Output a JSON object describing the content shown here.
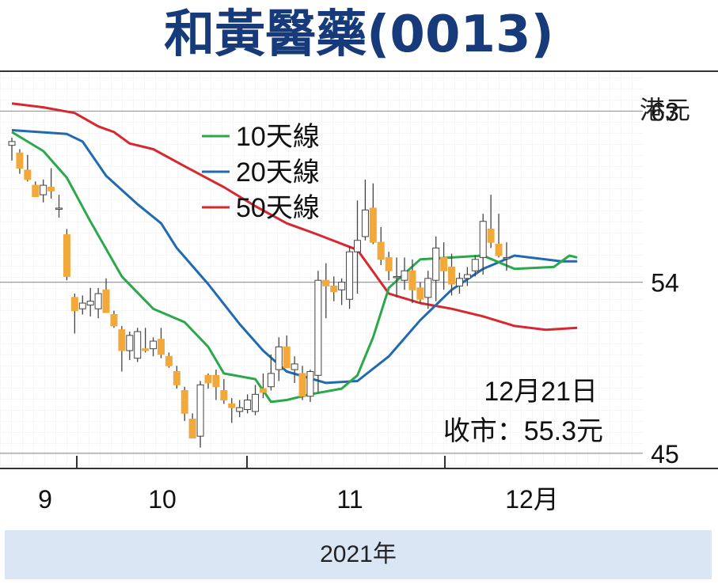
{
  "title": "和黃醫藥(0013)",
  "footer_year": "2021年",
  "chart_data": {
    "type": "candlestick-line",
    "ylabel": "港元",
    "yticks": [
      63,
      54,
      45
    ],
    "ylim": [
      44.2,
      65.1
    ],
    "xticks": [
      "9",
      "10",
      "11",
      "12月"
    ],
    "annotation": {
      "date": "12月21日",
      "close": "收市：55.3元"
    },
    "legend": [
      "10天線",
      "20天線",
      "50天線"
    ],
    "colors": {
      "ma10": "#2aa84a",
      "ma20": "#1f6ab3",
      "ma50": "#d7282f",
      "down": "#f2a93b",
      "up": "#ffffff",
      "wick": "#444444",
      "title": "#163a7a"
    },
    "ohlc": [
      [
        61.2,
        61.6,
        60.4,
        61.4
      ],
      [
        60.8,
        61.0,
        59.7,
        60.0
      ],
      [
        59.9,
        60.7,
        59.3,
        59.4
      ],
      [
        59.1,
        59.3,
        58.6,
        58.5
      ],
      [
        58.6,
        59.4,
        58.2,
        59.1
      ],
      [
        59.0,
        60.0,
        58.4,
        58.8
      ],
      [
        57.9,
        58.6,
        57.4,
        57.9
      ],
      [
        56.5,
        56.8,
        54.1,
        54.3
      ],
      [
        53.2,
        53.4,
        51.3,
        52.5
      ],
      [
        52.6,
        53.3,
        52.3,
        52.9
      ],
      [
        52.8,
        53.7,
        52.2,
        53.0
      ],
      [
        52.6,
        53.7,
        52.1,
        53.4
      ],
      [
        53.6,
        54.2,
        52.6,
        52.4
      ],
      [
        52.3,
        52.5,
        51.6,
        51.7
      ],
      [
        51.5,
        51.7,
        49.3,
        50.4
      ],
      [
        50.4,
        51.4,
        49.9,
        51.2
      ],
      [
        50.0,
        51.6,
        49.8,
        51.4
      ],
      [
        50.5,
        51.6,
        50.3,
        50.4
      ],
      [
        50.5,
        51.1,
        50.1,
        50.9
      ],
      [
        51.0,
        51.6,
        50.0,
        50.2
      ],
      [
        50.1,
        50.3,
        49.5,
        49.6
      ],
      [
        49.3,
        49.6,
        48.4,
        48.6
      ],
      [
        48.3,
        48.5,
        46.7,
        47.1
      ],
      [
        46.8,
        47.1,
        45.8,
        45.8
      ],
      [
        45.9,
        48.8,
        45.3,
        48.6
      ],
      [
        49.1,
        49.2,
        48.4,
        48.7
      ],
      [
        49.1,
        49.4,
        47.8,
        48.5
      ],
      [
        48.3,
        48.9,
        47.6,
        47.8
      ],
      [
        47.6,
        47.9,
        46.6,
        47.4
      ],
      [
        47.2,
        47.8,
        46.9,
        47.4
      ],
      [
        47.3,
        48.1,
        47.1,
        47.8
      ],
      [
        47.2,
        48.6,
        47.0,
        48.1
      ],
      [
        48.4,
        49.2,
        47.9,
        48.2
      ],
      [
        48.5,
        50.2,
        48.3,
        49.2
      ],
      [
        49.4,
        51.1,
        48.8,
        50.6
      ],
      [
        50.6,
        51.2,
        49.6,
        49.5
      ],
      [
        49.4,
        50.1,
        48.7,
        49.7
      ],
      [
        49.2,
        49.6,
        47.8,
        48.0
      ],
      [
        48.0,
        49.4,
        47.7,
        49.3
      ],
      [
        49.1,
        54.6,
        48.2,
        54.1
      ],
      [
        54.1,
        55.0,
        52.1,
        53.8
      ],
      [
        53.8,
        54.3,
        53.0,
        53.5
      ],
      [
        53.6,
        54.2,
        52.8,
        54.0
      ],
      [
        53.1,
        55.9,
        52.6,
        55.6
      ],
      [
        55.6,
        58.3,
        53.4,
        56.2
      ],
      [
        56.4,
        59.4,
        56.2,
        57.8
      ],
      [
        57.9,
        59.2,
        56.0,
        56.1
      ],
      [
        56.1,
        56.9,
        54.9,
        55.2
      ],
      [
        55.3,
        55.6,
        54.1,
        54.6
      ],
      [
        54.3,
        55.3,
        53.2,
        54.3
      ],
      [
        54.1,
        55.3,
        53.6,
        54.6
      ],
      [
        54.6,
        55.2,
        52.9,
        53.6
      ],
      [
        53.7,
        54.0,
        52.9,
        53.1
      ],
      [
        53.2,
        54.6,
        52.6,
        54.2
      ],
      [
        54.1,
        56.4,
        53.0,
        55.8
      ],
      [
        55.3,
        56.1,
        53.6,
        54.6
      ],
      [
        54.8,
        55.5,
        53.3,
        53.9
      ],
      [
        53.8,
        54.5,
        53.4,
        54.2
      ],
      [
        54.2,
        54.8,
        53.8,
        54.4
      ],
      [
        54.6,
        55.4,
        54.3,
        55.2
      ],
      [
        55.3,
        57.6,
        54.4,
        57.2
      ],
      [
        56.8,
        58.6,
        55.8,
        56.1
      ],
      [
        56.0,
        57.6,
        55.3,
        55.4
      ],
      [
        55.3,
        56.1,
        54.6,
        55.3
      ]
    ],
    "ma10": [
      [
        0,
        61.9
      ],
      [
        4,
        60.9
      ],
      [
        7,
        59.5
      ],
      [
        10,
        57.2
      ],
      [
        14,
        54.3
      ],
      [
        18,
        52.6
      ],
      [
        22,
        51.9
      ],
      [
        25,
        50.6
      ],
      [
        27,
        49.2
      ],
      [
        31,
        48.9
      ],
      [
        33,
        47.7
      ],
      [
        35,
        47.8
      ],
      [
        38,
        48.1
      ],
      [
        42,
        48.4
      ],
      [
        44,
        49.1
      ],
      [
        46,
        51.1
      ],
      [
        48,
        53.7
      ],
      [
        52,
        55.2
      ],
      [
        56,
        55.3
      ],
      [
        60,
        55.4
      ],
      [
        64,
        54.7
      ],
      [
        69,
        54.8
      ],
      [
        71,
        55.4
      ],
      [
        72,
        55.3
      ]
    ],
    "ma20": [
      [
        0,
        62.0
      ],
      [
        7,
        61.8
      ],
      [
        9,
        61.4
      ],
      [
        12,
        59.6
      ],
      [
        16,
        58.1
      ],
      [
        19,
        57.1
      ],
      [
        21,
        55.8
      ],
      [
        25,
        53.9
      ],
      [
        29,
        51.8
      ],
      [
        32,
        50.4
      ],
      [
        35,
        49.3
      ],
      [
        40,
        48.7
      ],
      [
        44,
        48.8
      ],
      [
        48,
        50.1
      ],
      [
        52,
        52.0
      ],
      [
        56,
        53.6
      ],
      [
        60,
        54.7
      ],
      [
        64,
        55.4
      ],
      [
        70,
        55.1
      ],
      [
        72,
        55.1
      ]
    ],
    "ma50": [
      [
        0,
        63.4
      ],
      [
        4,
        63.2
      ],
      [
        8,
        62.9
      ],
      [
        11,
        62.2
      ],
      [
        13,
        61.9
      ],
      [
        15,
        61.3
      ],
      [
        18,
        61.0
      ],
      [
        22,
        60.1
      ],
      [
        27,
        59.0
      ],
      [
        31,
        58.0
      ],
      [
        35,
        57.1
      ],
      [
        39,
        56.5
      ],
      [
        44,
        55.7
      ],
      [
        48,
        53.4
      ],
      [
        52,
        52.9
      ],
      [
        56,
        52.6
      ],
      [
        60,
        52.2
      ],
      [
        64,
        51.7
      ],
      [
        68,
        51.5
      ],
      [
        72,
        51.6
      ]
    ]
  }
}
